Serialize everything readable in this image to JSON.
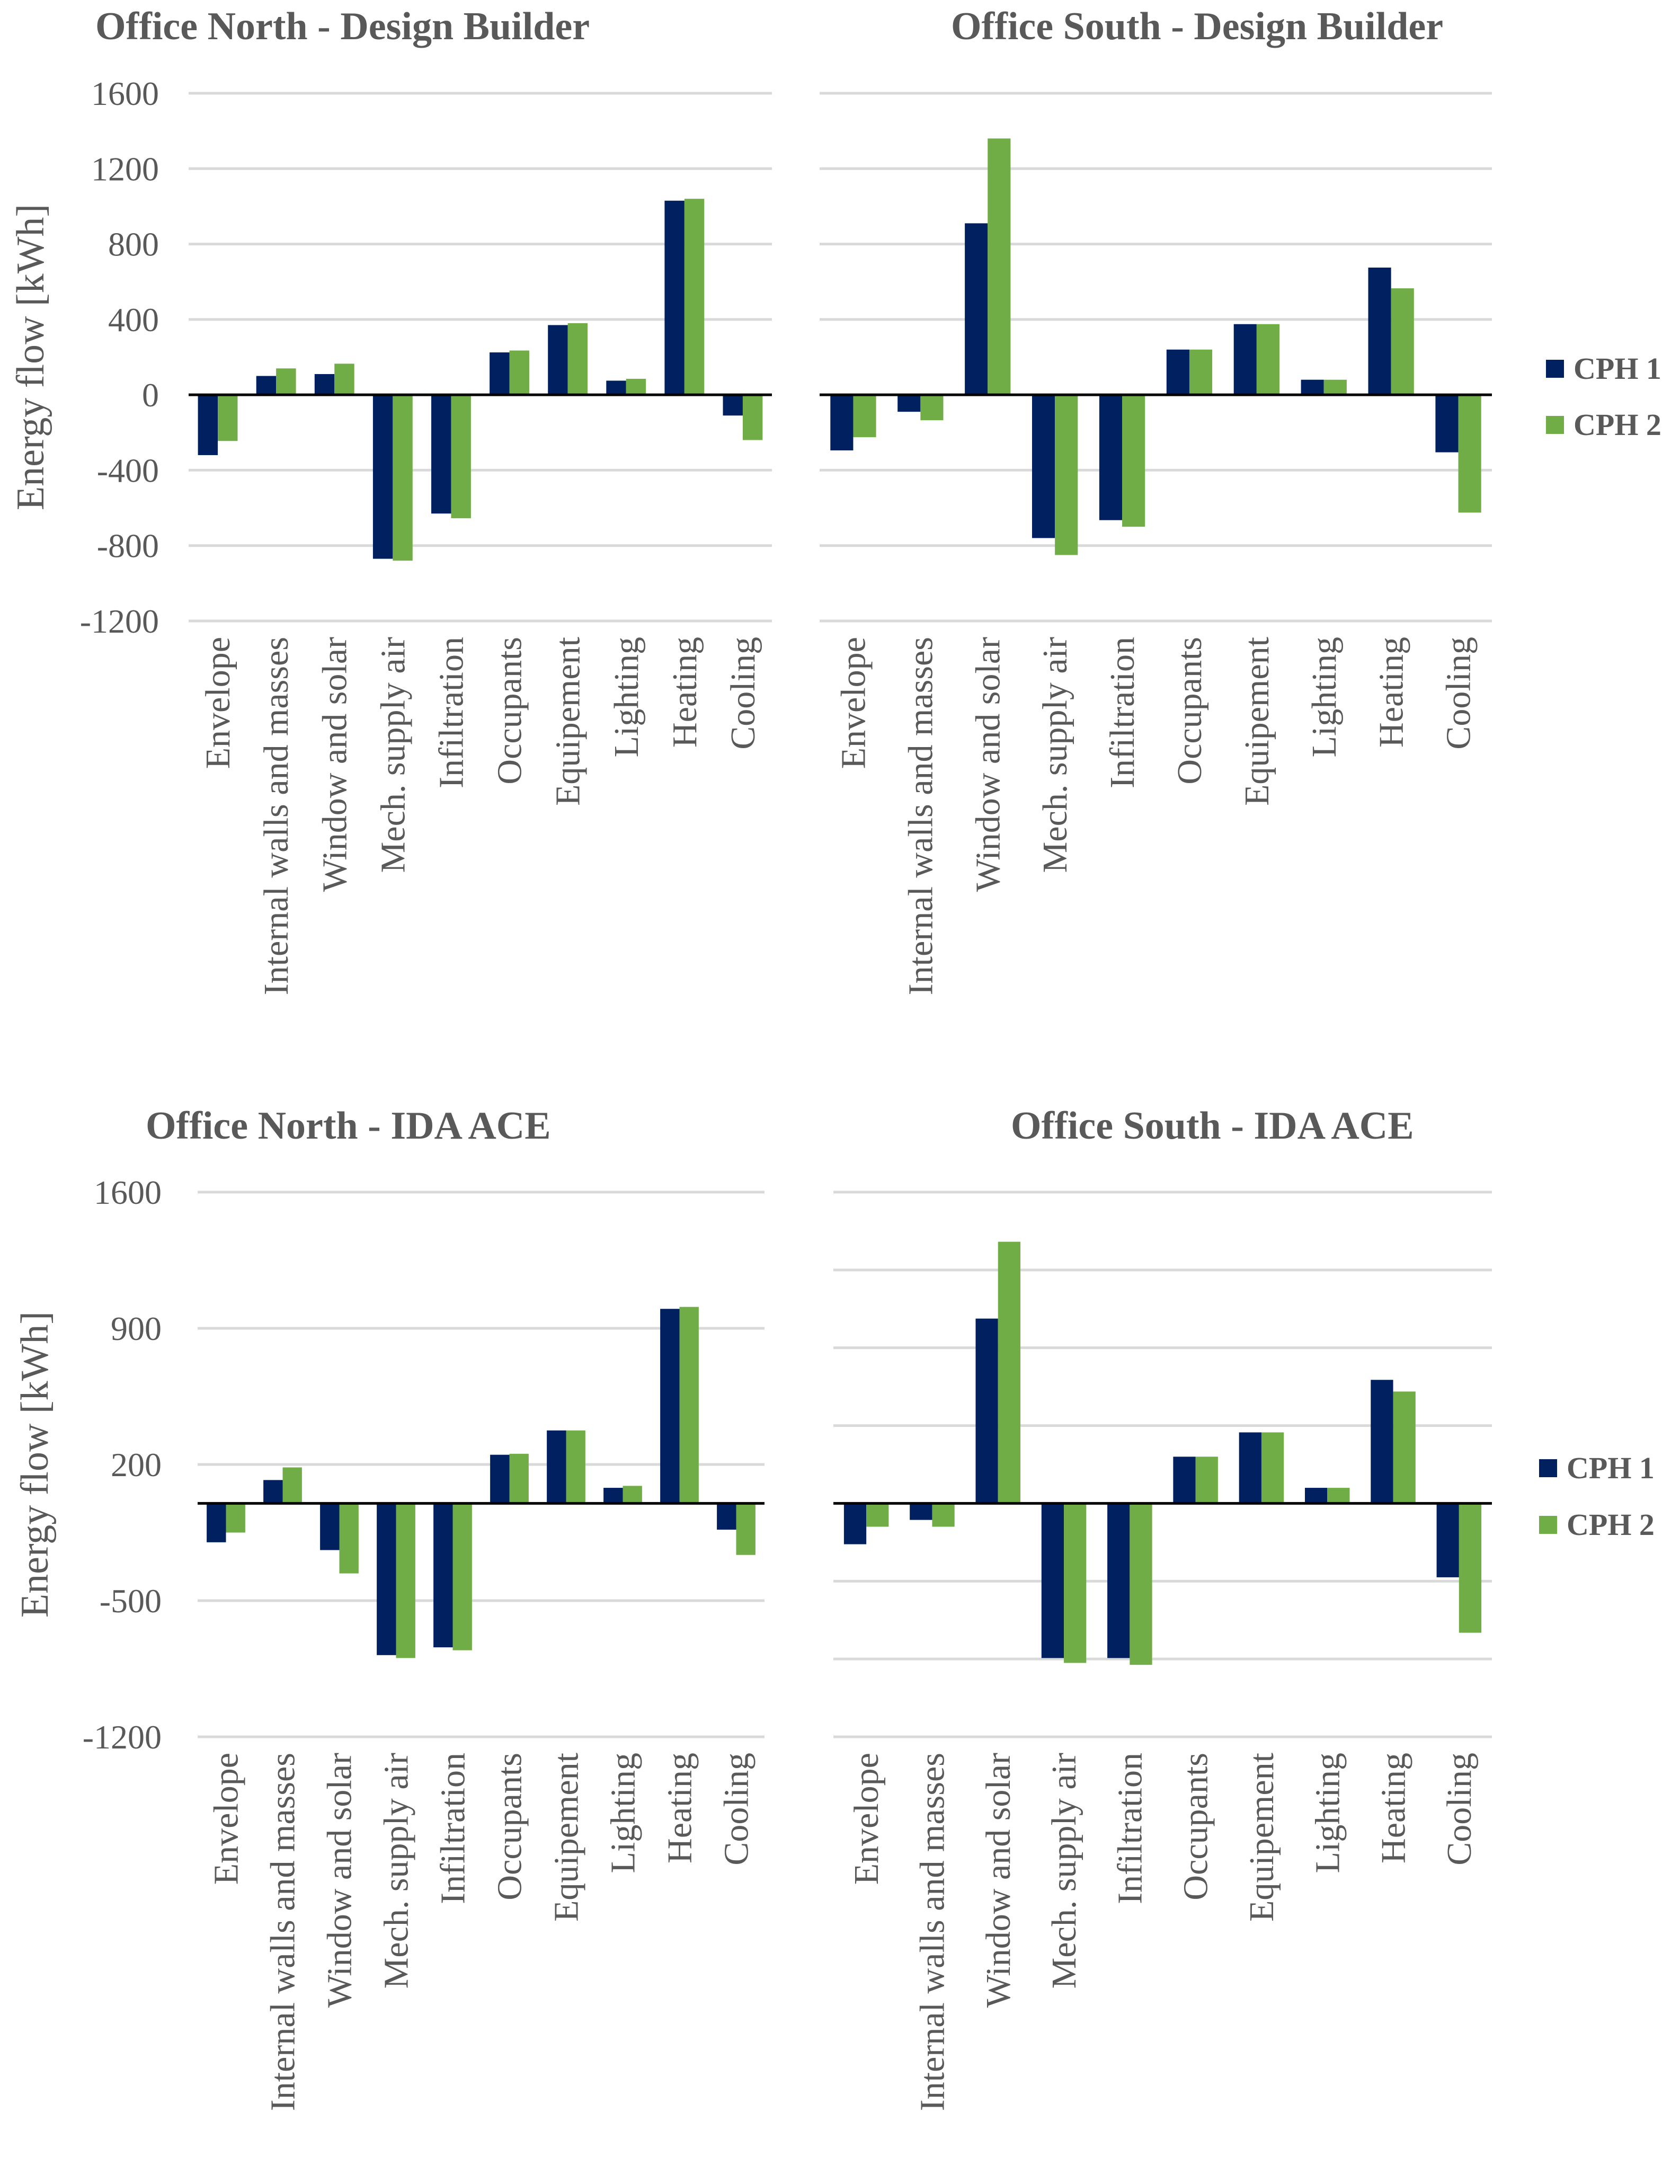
{
  "colors": {
    "CPH 1": "#002060",
    "CPH 2": "#70AD47"
  },
  "chart_data": [
    {
      "type": "bar",
      "title": "Office North - Design Builder",
      "ylabel": "Energy flow [kWh]",
      "ylim": [
        -1200,
        1600
      ],
      "yticks": [
        "1600",
        "1200",
        "800",
        "400",
        "0",
        "-400",
        "-800",
        "-1200"
      ],
      "ytick_values": [
        1600,
        1200,
        800,
        400,
        0,
        -400,
        -800,
        -1200
      ],
      "categories": [
        "Envelope",
        "Internal walls and masses",
        "Window and solar",
        "Mech. supply air",
        "Infiltration",
        "Occupants",
        "Equipement",
        "Lighting",
        "Heating",
        "Cooling"
      ],
      "series": [
        {
          "name": "CPH 1",
          "values": [
            -320,
            100,
            110,
            -870,
            -630,
            225,
            370,
            75,
            1030,
            -110
          ]
        },
        {
          "name": "CPH 2",
          "values": [
            -245,
            140,
            165,
            -880,
            -655,
            235,
            380,
            85,
            1040,
            -240
          ]
        }
      ],
      "legend": []
    },
    {
      "type": "bar",
      "title": "Office South - Design Builder",
      "ylabel": "",
      "ylim": [
        -1200,
        1600
      ],
      "yticks": [],
      "ytick_values": [
        1600,
        1200,
        800,
        400,
        0,
        -400,
        -800,
        -1200
      ],
      "categories": [
        "Envelope",
        "Internal walls and masses",
        "Window and solar",
        "Mech. supply air",
        "Infiltration",
        "Occupants",
        "Equipement",
        "Lighting",
        "Heating",
        "Cooling"
      ],
      "series": [
        {
          "name": "CPH 1",
          "values": [
            -295,
            -90,
            910,
            -760,
            -665,
            240,
            375,
            80,
            675,
            -305
          ]
        },
        {
          "name": "CPH 2",
          "values": [
            -225,
            -135,
            1360,
            -850,
            -700,
            240,
            375,
            80,
            565,
            -625
          ]
        }
      ],
      "legend": [
        "CPH 1",
        "CPH 2"
      ],
      "legend_position": "right"
    },
    {
      "type": "bar",
      "title": "Office North - IDA ACE",
      "ylabel": "Energy flow [kWh]",
      "ylim": [
        -1200,
        1600
      ],
      "yticks": [
        "1600",
        "900",
        "200",
        "-500",
        "-1200"
      ],
      "ytick_values": [
        1600,
        900,
        200,
        -500,
        -1200
      ],
      "categories": [
        "Envelope",
        "Internal walls and masses",
        "Window and solar",
        "Mech. supply air",
        "Infiltration",
        "Occupants",
        "Equipement",
        "Lighting",
        "Heating",
        "Cooling"
      ],
      "series": [
        {
          "name": "CPH 1",
          "values": [
            -200,
            120,
            -240,
            -780,
            -740,
            250,
            375,
            80,
            1000,
            -135
          ]
        },
        {
          "name": "CPH 2",
          "values": [
            -150,
            185,
            -360,
            -795,
            -755,
            255,
            375,
            90,
            1010,
            -265
          ]
        }
      ],
      "legend": []
    },
    {
      "type": "bar",
      "title": "Office South - IDA ACE",
      "ylabel": "",
      "ylim": [
        -1200,
        1600
      ],
      "yticks": [],
      "ytick_values": [
        1600,
        1200,
        800,
        400,
        0,
        -400,
        -800,
        -1200
      ],
      "categories": [
        "Envelope",
        "Internal walls and masses",
        "Window and solar",
        "Mech. supply air",
        "Infiltration",
        "Occupants",
        "Equipement",
        "Lighting",
        "Heating",
        "Cooling"
      ],
      "series": [
        {
          "name": "CPH 1",
          "values": [
            -210,
            -85,
            950,
            -795,
            -795,
            240,
            365,
            80,
            635,
            -380
          ]
        },
        {
          "name": "CPH 2",
          "values": [
            -120,
            -120,
            1345,
            -820,
            -830,
            240,
            365,
            80,
            575,
            -665
          ]
        }
      ],
      "legend": [
        "CPH 1",
        "CPH 2"
      ],
      "legend_position": "right"
    }
  ]
}
